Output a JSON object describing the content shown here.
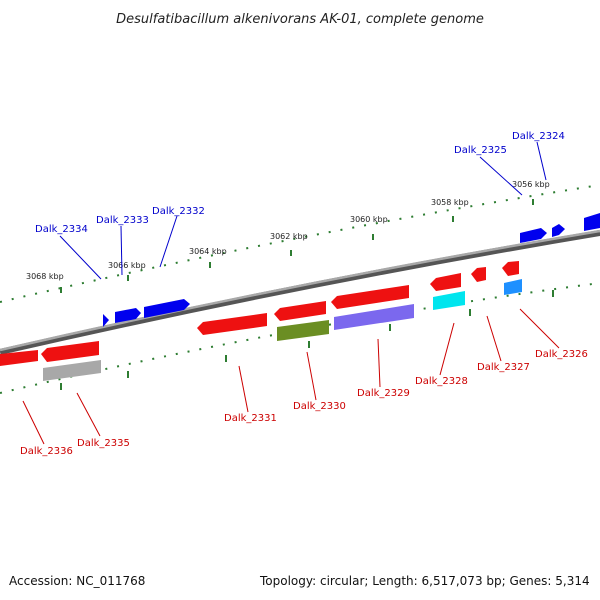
{
  "title": "Desulfatibacillum alkenivorans AK-01, complete genome",
  "footer": {
    "accession": "Accession: NC_011768",
    "summary": "Topology: circular; Length: 6,517,073 bp; Genes: 5,314"
  },
  "scale_labels": [
    "3068 kbp",
    "3066 kbp",
    "3064 kbp",
    "3062 kbp",
    "3060 kbp",
    "3058 kbp",
    "3056 kbp"
  ],
  "colors": {
    "plus_label": "#0000cc",
    "minus_label": "#cc0000",
    "backbone": "#777777",
    "tick_green": "#2e7d32"
  },
  "genes_plus": [
    {
      "name": "Dalk_2334"
    },
    {
      "name": "Dalk_2333"
    },
    {
      "name": "Dalk_2332"
    },
    {
      "name": "Dalk_2325"
    },
    {
      "name": "Dalk_2324"
    }
  ],
  "genes_minus": [
    {
      "name": "Dalk_2336"
    },
    {
      "name": "Dalk_2335"
    },
    {
      "name": "Dalk_2331"
    },
    {
      "name": "Dalk_2330"
    },
    {
      "name": "Dalk_2329"
    },
    {
      "name": "Dalk_2328"
    },
    {
      "name": "Dalk_2327"
    },
    {
      "name": "Dalk_2326"
    }
  ]
}
